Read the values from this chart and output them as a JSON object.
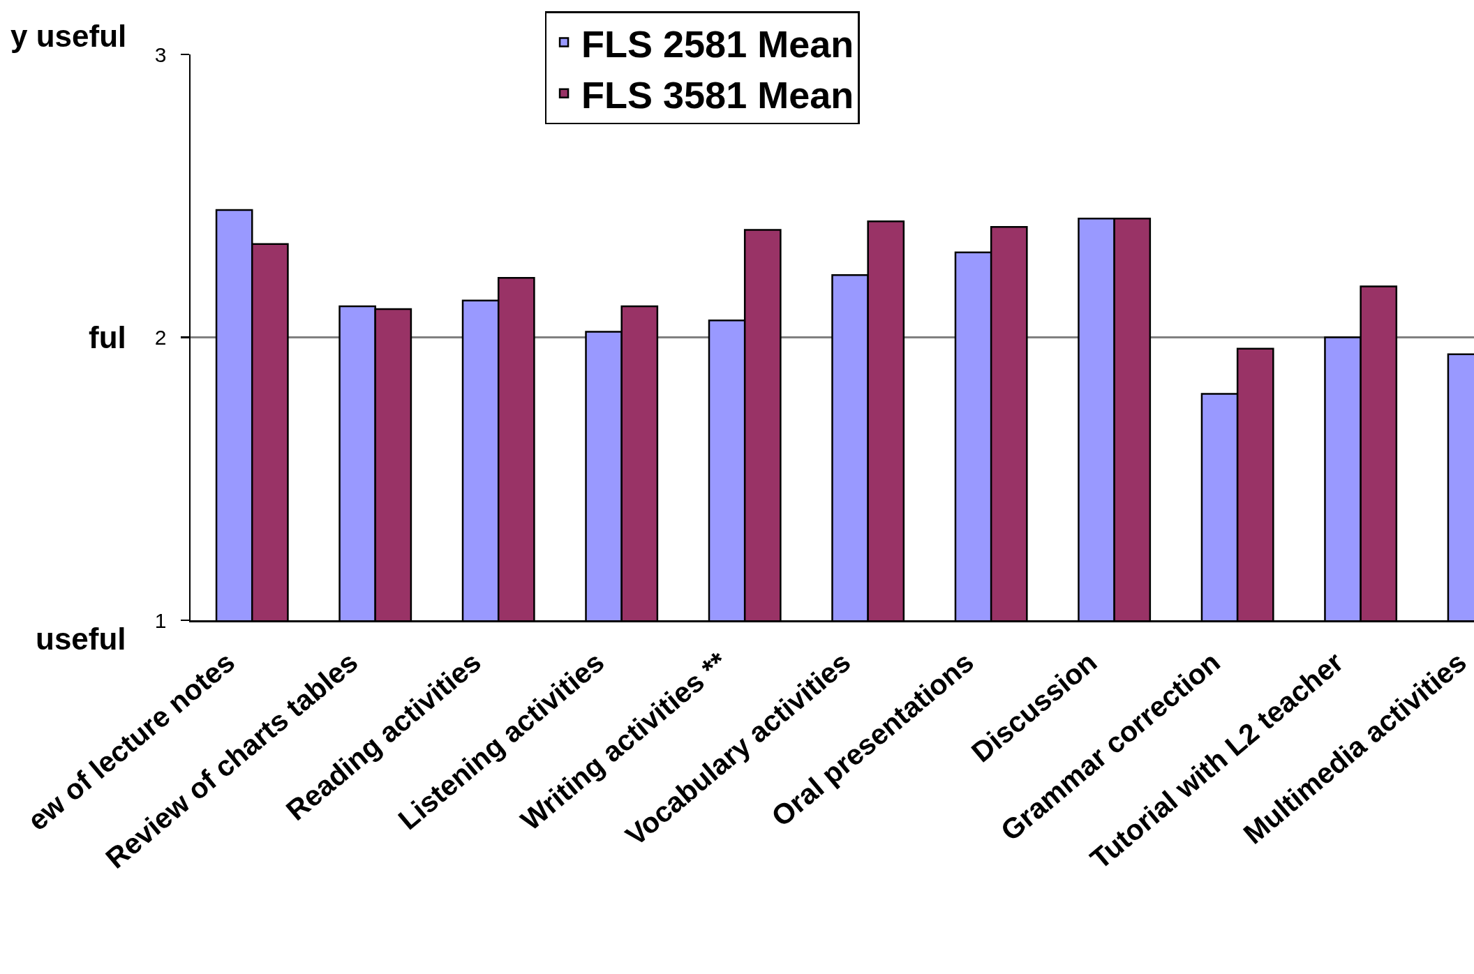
{
  "chart_data": {
    "type": "bar",
    "categories": [
      "ew of lecture notes",
      "Review of charts tables",
      "Reading activities",
      "Listening activities",
      "Writing activities **",
      "Vocabulary activities",
      "Oral presentations",
      "Discussion",
      "Grammar correction",
      "Tutorial with L2 teacher",
      "Multimedia activities",
      null
    ],
    "series": [
      {
        "name": "FLS 2581 Mean",
        "color": "#9999ff",
        "values": [
          2.45,
          2.11,
          2.13,
          2.02,
          2.06,
          2.22,
          2.3,
          2.42,
          1.8,
          2.0,
          1.94,
          null
        ]
      },
      {
        "name": "FLS 3581 Mean",
        "color": "#993366",
        "values": [
          2.33,
          2.1,
          2.21,
          2.11,
          2.38,
          2.41,
          2.39,
          2.42,
          1.96,
          2.18,
          null,
          null
        ]
      }
    ],
    "ylim": [
      1,
      3
    ],
    "yticks": [
      1,
      2,
      3
    ],
    "grid": "y",
    "legend": "top",
    "annotations": [
      "y useful",
      "ful",
      "useful"
    ]
  }
}
